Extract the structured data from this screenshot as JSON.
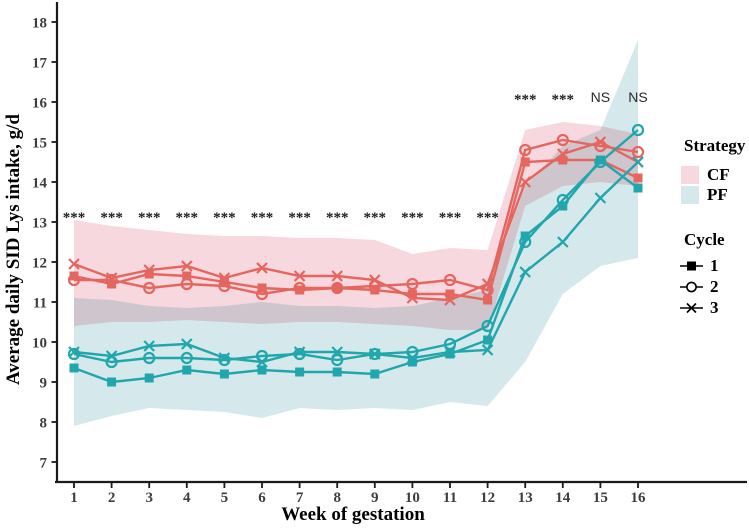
{
  "figure": {
    "y_axis_label": "Average daily SID Lys intake, g/d",
    "x_axis_label": "Week of gestation"
  },
  "legend": {
    "strategy": {
      "title": "Strategy",
      "items": [
        {
          "label": "CF",
          "color": "#f7d8de"
        },
        {
          "label": "PF",
          "color": "#d5e9ec"
        }
      ]
    },
    "cycle": {
      "title": "Cycle",
      "items": [
        {
          "label": "1",
          "marker": "square"
        },
        {
          "label": "2",
          "marker": "circle"
        },
        {
          "label": "3",
          "marker": "x"
        }
      ]
    }
  },
  "chart_data": {
    "type": "line",
    "title": "",
    "xlabel": "Week of gestation",
    "ylabel": "Average daily SID Lys intake, g/d",
    "x": [
      1,
      2,
      3,
      4,
      5,
      6,
      7,
      8,
      9,
      10,
      11,
      12,
      13,
      14,
      15,
      16
    ],
    "yticks": [
      7,
      8,
      9,
      10,
      11,
      12,
      13,
      14,
      15,
      16,
      17,
      18
    ],
    "ylim": [
      6.5,
      18.5
    ],
    "grid": false,
    "legend_position": "right",
    "series": [
      {
        "name": "CF cycle 1",
        "strategy": "CF",
        "cycle": "1",
        "marker": "square",
        "color": "#e4665f",
        "values": [
          11.65,
          11.45,
          11.7,
          11.65,
          11.5,
          11.35,
          11.3,
          11.35,
          11.3,
          11.2,
          11.2,
          11.05,
          14.5,
          14.55,
          14.55,
          14.1
        ]
      },
      {
        "name": "CF cycle 2",
        "strategy": "CF",
        "cycle": "2",
        "marker": "circle",
        "color": "#e4665f",
        "values": [
          11.55,
          11.55,
          11.35,
          11.45,
          11.4,
          11.2,
          11.35,
          11.35,
          11.4,
          11.45,
          11.55,
          11.3,
          14.8,
          15.05,
          14.9,
          14.75
        ]
      },
      {
        "name": "CF cycle 3",
        "strategy": "CF",
        "cycle": "3",
        "marker": "x",
        "color": "#e4665f",
        "values": [
          11.95,
          11.6,
          11.8,
          11.9,
          11.6,
          11.85,
          11.65,
          11.65,
          11.55,
          11.1,
          11.05,
          11.45,
          14.0,
          14.7,
          15.0,
          14.5
        ]
      },
      {
        "name": "PF cycle 1",
        "strategy": "PF",
        "cycle": "1",
        "marker": "square",
        "color": "#21a7ab",
        "values": [
          9.35,
          9.0,
          9.1,
          9.3,
          9.2,
          9.3,
          9.25,
          9.25,
          9.2,
          9.5,
          9.7,
          10.05,
          12.65,
          13.4,
          14.55,
          13.85
        ]
      },
      {
        "name": "PF cycle 2",
        "strategy": "PF",
        "cycle": "2",
        "marker": "circle",
        "color": "#21a7ab",
        "values": [
          9.7,
          9.5,
          9.6,
          9.6,
          9.55,
          9.65,
          9.7,
          9.55,
          9.7,
          9.75,
          9.95,
          10.4,
          12.5,
          13.55,
          14.5,
          15.3
        ]
      },
      {
        "name": "PF cycle 3",
        "strategy": "PF",
        "cycle": "3",
        "marker": "x",
        "color": "#21a7ab",
        "values": [
          9.75,
          9.65,
          9.9,
          9.95,
          9.6,
          9.5,
          9.75,
          9.75,
          9.7,
          9.6,
          9.75,
          9.8,
          11.75,
          12.5,
          13.6,
          14.5
        ]
      }
    ],
    "bands": [
      {
        "name": "CF",
        "color": "#f7d8de",
        "upper": [
          13.05,
          12.9,
          12.8,
          12.7,
          12.65,
          12.65,
          12.6,
          12.6,
          12.55,
          12.2,
          12.35,
          12.3,
          15.3,
          15.5,
          15.4,
          15.2
        ],
        "lower": [
          10.4,
          10.5,
          10.5,
          10.55,
          10.5,
          10.45,
          10.5,
          10.5,
          10.45,
          10.4,
          10.3,
          10.3,
          13.4,
          13.9,
          14.0,
          13.9
        ]
      },
      {
        "name": "PF",
        "color": "#d5e9ec",
        "upper": [
          11.1,
          11.05,
          10.9,
          10.85,
          10.9,
          11.0,
          10.9,
          10.9,
          10.85,
          10.9,
          11.1,
          11.3,
          13.9,
          14.9,
          15.3,
          17.55
        ],
        "lower": [
          7.9,
          8.15,
          8.35,
          8.3,
          8.25,
          8.1,
          8.35,
          8.3,
          8.35,
          8.3,
          8.5,
          8.4,
          9.5,
          11.2,
          11.9,
          12.1
        ]
      }
    ],
    "annotations": [
      {
        "week": 1,
        "label": "***",
        "y": 13.0
      },
      {
        "week": 2,
        "label": "***",
        "y": 13.0
      },
      {
        "week": 3,
        "label": "***",
        "y": 13.0
      },
      {
        "week": 4,
        "label": "***",
        "y": 13.0
      },
      {
        "week": 5,
        "label": "***",
        "y": 13.0
      },
      {
        "week": 6,
        "label": "***",
        "y": 13.0
      },
      {
        "week": 7,
        "label": "***",
        "y": 13.0
      },
      {
        "week": 8,
        "label": "***",
        "y": 13.0
      },
      {
        "week": 9,
        "label": "***",
        "y": 13.0
      },
      {
        "week": 10,
        "label": "***",
        "y": 13.0
      },
      {
        "week": 11,
        "label": "***",
        "y": 13.0
      },
      {
        "week": 12,
        "label": "***",
        "y": 13.0
      },
      {
        "week": 13,
        "label": "***",
        "y": 15.95
      },
      {
        "week": 14,
        "label": "***",
        "y": 15.95
      },
      {
        "week": 15,
        "label": "NS",
        "y": 16.0
      },
      {
        "week": 16,
        "label": "NS",
        "y": 16.0
      }
    ]
  },
  "colors": {
    "cf_line": "#e4665f",
    "pf_line": "#21a7ab",
    "cf_band": "#f7d8de",
    "pf_band": "#d5e9ec",
    "axis": "#1a1a1a",
    "tick_text": "#3d3d3d"
  }
}
